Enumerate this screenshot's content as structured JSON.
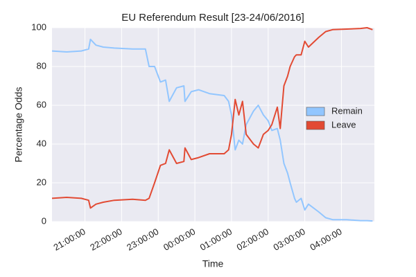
{
  "chart_data": {
    "type": "line",
    "title": "EU Referendum Result [23-24/06/2016]",
    "x_label": "Time",
    "y_label": "Percentage Odds",
    "x": [
      20.1,
      20.5,
      20.9,
      21.1,
      21.15,
      21.3,
      21.5,
      21.8,
      22.3,
      22.65,
      22.75,
      22.9,
      23.06,
      23.2,
      23.3,
      23.5,
      23.7,
      23.73,
      23.9,
      24.1,
      24.4,
      24.8,
      24.92,
      25.0,
      25.1,
      25.2,
      25.3,
      25.4,
      25.6,
      25.73,
      25.87,
      26.0,
      26.1,
      26.25,
      26.33,
      26.43,
      26.53,
      26.6,
      26.72,
      26.77,
      26.9,
      27.0,
      27.1,
      27.38,
      27.57,
      27.76,
      28.14,
      28.52,
      28.7,
      28.85
    ],
    "series": [
      {
        "name": "Remain",
        "color": "#92c6ff",
        "values": [
          88,
          87.5,
          88,
          89,
          94,
          91,
          90,
          89.5,
          89,
          89,
          80,
          80,
          72,
          73,
          62,
          69,
          70,
          62,
          67,
          68,
          66,
          65,
          62,
          55,
          37,
          42,
          40,
          50,
          57,
          60,
          55,
          52,
          47,
          48,
          42,
          30,
          25,
          20,
          12,
          10,
          12,
          6,
          9,
          5,
          2,
          1,
          1,
          0.5,
          0.5,
          0.3
        ]
      },
      {
        "name": "Leave",
        "color": "#e24a33",
        "values": [
          12,
          12.5,
          12,
          11,
          7,
          9,
          10,
          11,
          11.5,
          11,
          12,
          20,
          29,
          30,
          37,
          30,
          31,
          38,
          32,
          33,
          35,
          35,
          37,
          45,
          63,
          55,
          62,
          45,
          40,
          38,
          45,
          47,
          50,
          59,
          48,
          70,
          75,
          80,
          85,
          86,
          86,
          93,
          90,
          95,
          98,
          99,
          99.3,
          99.6,
          100,
          99
        ]
      }
    ],
    "xlim": [
      20.1,
      28.9
    ],
    "xticks": [
      {
        "value": 21,
        "label": "21:00:00"
      },
      {
        "value": 22,
        "label": "22:00:00"
      },
      {
        "value": 23,
        "label": "23:00:00"
      },
      {
        "value": 24,
        "label": "00:00:00"
      },
      {
        "value": 25,
        "label": "01:00:00"
      },
      {
        "value": 26,
        "label": "02:00:00"
      },
      {
        "value": 27,
        "label": "03:00:00"
      },
      {
        "value": 28,
        "label": "04:00:00"
      }
    ],
    "ylim": [
      0,
      100
    ],
    "yticks": [
      0,
      20,
      40,
      60,
      80,
      100
    ],
    "grid": true,
    "legend": "center right"
  }
}
